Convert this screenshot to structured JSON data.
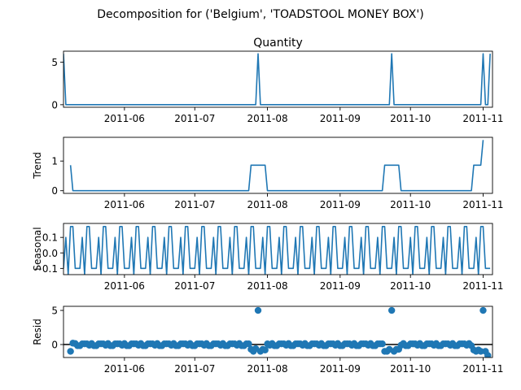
{
  "figure": {
    "suptitle": "Decomposition for ('Belgium', 'TOADSTOOL MONEY BOX')"
  },
  "chart_data": [
    {
      "type": "line",
      "name": "observed",
      "title": "Quantity",
      "ylabel": "",
      "xlim": [
        "2011-05-06",
        "2011-11-05"
      ],
      "ylim": [
        -0.3,
        6.3
      ],
      "yticks": [
        "0",
        "5"
      ],
      "ytick_values": [
        0,
        5
      ],
      "xticks": [
        "2011-06",
        "2011-07",
        "2011-08",
        "2011-09",
        "2011-10",
        "2011-11"
      ],
      "xtick_values": [
        "2011-06-01",
        "2011-07-01",
        "2011-08-01",
        "2011-09-01",
        "2011-10-01",
        "2011-11-01"
      ],
      "series": [
        {
          "color": "#1f77b4",
          "x": [
            "2011-05-06",
            "2011-05-07",
            "2011-07-27",
            "2011-07-28",
            "2011-07-29",
            "2011-09-22",
            "2011-09-23",
            "2011-09-24",
            "2011-10-31",
            "2011-11-01",
            "2011-11-02",
            "2011-11-03",
            "2011-11-04"
          ],
          "y": [
            6,
            0,
            0,
            6,
            0,
            0,
            6,
            0,
            0,
            6,
            0,
            0,
            6
          ]
        }
      ]
    },
    {
      "type": "line",
      "name": "trend",
      "ylabel": "Trend",
      "xlim": [
        "2011-05-06",
        "2011-11-05"
      ],
      "ylim": [
        -0.09,
        1.8
      ],
      "yticks": [
        "0",
        "1"
      ],
      "ytick_values": [
        0,
        1
      ],
      "xticks": [
        "2011-06",
        "2011-07",
        "2011-08",
        "2011-09",
        "2011-10",
        "2011-11"
      ],
      "xtick_values": [
        "2011-06-01",
        "2011-07-01",
        "2011-08-01",
        "2011-09-01",
        "2011-10-01",
        "2011-11-01"
      ],
      "series": [
        {
          "color": "#1f77b4",
          "x": [
            "2011-05-09",
            "2011-05-10",
            "2011-07-24",
            "2011-07-25",
            "2011-07-31",
            "2011-08-01",
            "2011-09-19",
            "2011-09-20",
            "2011-09-26",
            "2011-09-27",
            "2011-10-27",
            "2011-10-28",
            "2011-10-31",
            "2011-11-01"
          ],
          "y": [
            0.86,
            0,
            0,
            0.86,
            0.86,
            0,
            0,
            0.86,
            0.86,
            0,
            0,
            0.86,
            0.86,
            1.71
          ]
        }
      ]
    },
    {
      "type": "line",
      "name": "seasonal",
      "ylabel": "Seasonal",
      "xlim": [
        "2011-05-06",
        "2011-11-05"
      ],
      "ylim": [
        -0.14,
        0.19
      ],
      "yticks": [
        "−0.1",
        "0.0",
        "0.1"
      ],
      "ytick_values": [
        -0.1,
        0,
        0.1
      ],
      "xticks": [
        "2011-06",
        "2011-07",
        "2011-08",
        "2011-09",
        "2011-10",
        "2011-11"
      ],
      "xtick_values": [
        "2011-06-01",
        "2011-07-01",
        "2011-08-01",
        "2011-09-01",
        "2011-10-01",
        "2011-11-01"
      ],
      "period_days": 7,
      "start": "2011-05-06",
      "end": "2011-11-04",
      "weekly_pattern": [
        -0.1,
        0.1,
        -0.14,
        0.17,
        0.17,
        -0.1,
        -0.1
      ],
      "series": [
        {
          "color": "#1f77b4"
        }
      ]
    },
    {
      "type": "scatter",
      "name": "resid",
      "ylabel": "Resid",
      "xlim": [
        "2011-05-06",
        "2011-11-05"
      ],
      "ylim": [
        -1.9,
        5.6
      ],
      "yticks": [
        "0",
        "5"
      ],
      "ytick_values": [
        0,
        5
      ],
      "hline": 0,
      "xticks": [
        "2011-06",
        "2011-07",
        "2011-08",
        "2011-09",
        "2011-10",
        "2011-11"
      ],
      "xtick_values": [
        "2011-06-01",
        "2011-07-01",
        "2011-08-01",
        "2011-09-01",
        "2011-10-01",
        "2011-11-01"
      ],
      "baseline_start": "2011-05-09",
      "baseline_end": "2011-11-03",
      "baseline_pattern": [
        0.1,
        -0.1,
        0.14,
        -0.17,
        -0.17,
        0.1,
        0.1
      ],
      "notable_points": [
        {
          "x": "2011-05-09",
          "y": -1.0
        },
        {
          "x": "2011-05-10",
          "y": 0.2
        },
        {
          "x": "2011-07-25",
          "y": -0.7
        },
        {
          "x": "2011-07-26",
          "y": -1.0
        },
        {
          "x": "2011-07-27",
          "y": -0.6
        },
        {
          "x": "2011-07-28",
          "y": 5.0
        },
        {
          "x": "2011-07-29",
          "y": -1.0
        },
        {
          "x": "2011-07-30",
          "y": -0.7
        },
        {
          "x": "2011-07-31",
          "y": -0.8
        },
        {
          "x": "2011-09-20",
          "y": -1.0
        },
        {
          "x": "2011-09-21",
          "y": -1.0
        },
        {
          "x": "2011-09-22",
          "y": -0.7
        },
        {
          "x": "2011-09-23",
          "y": 5.0
        },
        {
          "x": "2011-09-24",
          "y": -1.0
        },
        {
          "x": "2011-09-25",
          "y": -0.7
        },
        {
          "x": "2011-09-26",
          "y": -0.7
        },
        {
          "x": "2011-10-28",
          "y": -0.8
        },
        {
          "x": "2011-10-29",
          "y": -1.0
        },
        {
          "x": "2011-10-30",
          "y": -0.8
        },
        {
          "x": "2011-10-31",
          "y": -1.0
        },
        {
          "x": "2011-11-01",
          "y": 5.0
        },
        {
          "x": "2011-11-02",
          "y": -1.0
        },
        {
          "x": "2011-11-03",
          "y": -1.6
        }
      ],
      "series": [
        {
          "color": "#1f77b4"
        }
      ]
    }
  ]
}
